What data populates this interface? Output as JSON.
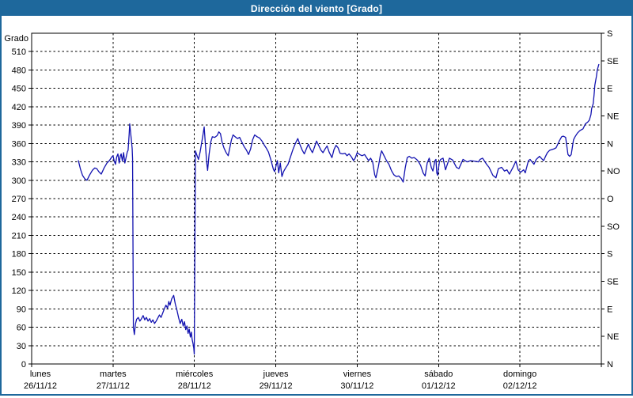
{
  "window": {
    "title": "Dirección del viento [Grado]"
  },
  "colors": {
    "titlebar_bg": "#1e689c",
    "window_border": "#1e689c",
    "title_text": "#ffffff",
    "plot_background": "#ffffff",
    "grid_color": "#000000",
    "axis_text_color": "#000000",
    "line_color": "#1212b0"
  },
  "chart_data": {
    "type": "line",
    "title": "Dirección del viento [Grado]",
    "ylabel": "Grado",
    "grid": "dashed",
    "legend": "none",
    "y_axis": {
      "label": "Grado",
      "min": 0,
      "max": 540,
      "tick_step": 30,
      "tick_labels": [
        0,
        30,
        60,
        90,
        120,
        150,
        180,
        210,
        240,
        270,
        300,
        330,
        360,
        390,
        420,
        450,
        480,
        510
      ]
    },
    "y_axis_right": {
      "unit_step_degrees": 45,
      "labels_bottom_to_top": [
        "N",
        "NE",
        "E",
        "SE",
        "S",
        "SO",
        "O",
        "NO",
        "N",
        "NE",
        "E",
        "SE",
        "S"
      ]
    },
    "x_axis": {
      "range_days": 7,
      "days": [
        {
          "name": "lunes",
          "date": "26/11/12"
        },
        {
          "name": "martes",
          "date": "27/11/12"
        },
        {
          "name": "miércoles",
          "date": "28/11/12"
        },
        {
          "name": "jueves",
          "date": "29/11/12"
        },
        {
          "name": "viernes",
          "date": "30/11/12"
        },
        {
          "name": "sábado",
          "date": "01/12/12"
        },
        {
          "name": "domingo",
          "date": "02/12/12"
        }
      ]
    },
    "series": [
      {
        "name": "Dirección del viento",
        "units": "Grado",
        "x_units": "days since lunes 26/11/12 00:00",
        "color": "#1212b0",
        "points": [
          [
            0.574,
            332
          ],
          [
            0.6,
            318
          ],
          [
            0.625,
            308
          ],
          [
            0.655,
            302
          ],
          [
            0.68,
            300
          ],
          [
            0.71,
            308
          ],
          [
            0.745,
            316
          ],
          [
            0.775,
            320
          ],
          [
            0.8,
            319
          ],
          [
            0.825,
            314
          ],
          [
            0.855,
            310
          ],
          [
            0.89,
            320
          ],
          [
            0.925,
            328
          ],
          [
            0.955,
            332
          ],
          [
            0.985,
            338
          ],
          [
            1.0,
            340
          ],
          [
            1.015,
            331
          ],
          [
            1.03,
            326
          ],
          [
            1.045,
            338
          ],
          [
            1.06,
            343
          ],
          [
            1.075,
            328
          ],
          [
            1.09,
            340
          ],
          [
            1.1,
            343
          ],
          [
            1.115,
            331
          ],
          [
            1.13,
            345
          ],
          [
            1.145,
            328
          ],
          [
            1.16,
            337
          ],
          [
            1.175,
            346
          ],
          [
            1.185,
            349
          ],
          [
            1.198,
            375
          ],
          [
            1.205,
            392
          ],
          [
            1.215,
            379
          ],
          [
            1.225,
            366
          ],
          [
            1.235,
            352
          ],
          [
            1.24,
            335
          ],
          [
            1.25,
            60
          ],
          [
            1.262,
            48
          ],
          [
            1.275,
            65
          ],
          [
            1.29,
            73
          ],
          [
            1.31,
            76
          ],
          [
            1.33,
            70
          ],
          [
            1.35,
            74
          ],
          [
            1.37,
            79
          ],
          [
            1.39,
            72
          ],
          [
            1.41,
            76
          ],
          [
            1.43,
            70
          ],
          [
            1.45,
            74
          ],
          [
            1.47,
            68
          ],
          [
            1.49,
            72
          ],
          [
            1.51,
            66
          ],
          [
            1.53,
            70
          ],
          [
            1.55,
            75
          ],
          [
            1.57,
            80
          ],
          [
            1.59,
            76
          ],
          [
            1.61,
            83
          ],
          [
            1.63,
            90
          ],
          [
            1.65,
            96
          ],
          [
            1.67,
            91
          ],
          [
            1.685,
            102
          ],
          [
            1.7,
            96
          ],
          [
            1.72,
            106
          ],
          [
            1.745,
            112
          ],
          [
            1.765,
            98
          ],
          [
            1.785,
            88
          ],
          [
            1.805,
            76
          ],
          [
            1.825,
            66
          ],
          [
            1.845,
            73
          ],
          [
            1.862,
            62
          ],
          [
            1.878,
            69
          ],
          [
            1.893,
            56
          ],
          [
            1.908,
            62
          ],
          [
            1.922,
            50
          ],
          [
            1.936,
            57
          ],
          [
            1.95,
            44
          ],
          [
            1.962,
            52
          ],
          [
            1.972,
            40
          ],
          [
            1.982,
            34
          ],
          [
            1.992,
            26
          ],
          [
            1.998,
            16
          ],
          [
            2.006,
            200
          ],
          [
            2.012,
            348
          ],
          [
            2.03,
            341
          ],
          [
            2.05,
            334
          ],
          [
            2.07,
            346
          ],
          [
            2.09,
            362
          ],
          [
            2.105,
            374
          ],
          [
            2.12,
            387
          ],
          [
            2.135,
            358
          ],
          [
            2.15,
            330
          ],
          [
            2.162,
            316
          ],
          [
            2.18,
            342
          ],
          [
            2.2,
            362
          ],
          [
            2.22,
            371
          ],
          [
            2.25,
            370
          ],
          [
            2.28,
            373
          ],
          [
            2.3,
            379
          ],
          [
            2.32,
            376
          ],
          [
            2.34,
            362
          ],
          [
            2.365,
            352
          ],
          [
            2.39,
            345
          ],
          [
            2.415,
            340
          ],
          [
            2.435,
            353
          ],
          [
            2.455,
            366
          ],
          [
            2.475,
            374
          ],
          [
            2.5,
            371
          ],
          [
            2.53,
            368
          ],
          [
            2.555,
            370
          ],
          [
            2.58,
            363
          ],
          [
            2.61,
            355
          ],
          [
            2.64,
            349
          ],
          [
            2.665,
            342
          ],
          [
            2.69,
            351
          ],
          [
            2.715,
            366
          ],
          [
            2.74,
            374
          ],
          [
            2.77,
            371
          ],
          [
            2.8,
            369
          ],
          [
            2.83,
            364
          ],
          [
            2.86,
            357
          ],
          [
            2.885,
            352
          ],
          [
            2.91,
            346
          ],
          [
            2.94,
            333
          ],
          [
            2.97,
            318
          ],
          [
            2.985,
            314
          ],
          [
            3.0,
            322
          ],
          [
            3.02,
            332
          ],
          [
            3.035,
            312
          ],
          [
            3.055,
            328
          ],
          [
            3.075,
            306
          ],
          [
            3.095,
            314
          ],
          [
            3.12,
            320
          ],
          [
            3.15,
            326
          ],
          [
            3.18,
            338
          ],
          [
            3.21,
            350
          ],
          [
            3.24,
            360
          ],
          [
            3.27,
            368
          ],
          [
            3.3,
            357
          ],
          [
            3.325,
            349
          ],
          [
            3.35,
            343
          ],
          [
            3.375,
            351
          ],
          [
            3.4,
            359
          ],
          [
            3.425,
            351
          ],
          [
            3.45,
            345
          ],
          [
            3.475,
            354
          ],
          [
            3.5,
            364
          ],
          [
            3.53,
            356
          ],
          [
            3.555,
            349
          ],
          [
            3.58,
            345
          ],
          [
            3.605,
            351
          ],
          [
            3.63,
            356
          ],
          [
            3.655,
            346
          ],
          [
            3.69,
            337
          ],
          [
            3.715,
            350
          ],
          [
            3.74,
            357
          ],
          [
            3.765,
            353
          ],
          [
            3.79,
            344
          ],
          [
            3.82,
            343
          ],
          [
            3.85,
            344
          ],
          [
            3.875,
            340
          ],
          [
            3.9,
            343
          ],
          [
            3.93,
            338
          ],
          [
            3.955,
            332
          ],
          [
            3.975,
            336
          ],
          [
            4.0,
            345
          ],
          [
            4.03,
            342
          ],
          [
            4.06,
            340
          ],
          [
            4.09,
            342
          ],
          [
            4.115,
            337
          ],
          [
            4.14,
            332
          ],
          [
            4.165,
            336
          ],
          [
            4.19,
            330
          ],
          [
            4.215,
            309
          ],
          [
            4.23,
            304
          ],
          [
            4.26,
            322
          ],
          [
            4.285,
            341
          ],
          [
            4.3,
            348
          ],
          [
            4.33,
            340
          ],
          [
            4.36,
            332
          ],
          [
            4.39,
            326
          ],
          [
            4.42,
            316
          ],
          [
            4.45,
            309
          ],
          [
            4.48,
            306
          ],
          [
            4.51,
            307
          ],
          [
            4.54,
            303
          ],
          [
            4.565,
            297
          ],
          [
            4.59,
            320
          ],
          [
            4.615,
            337
          ],
          [
            4.64,
            339
          ],
          [
            4.67,
            336
          ],
          [
            4.7,
            337
          ],
          [
            4.73,
            334
          ],
          [
            4.755,
            330
          ],
          [
            4.78,
            324
          ],
          [
            4.81,
            312
          ],
          [
            4.835,
            307
          ],
          [
            4.86,
            328
          ],
          [
            4.885,
            336
          ],
          [
            4.91,
            321
          ],
          [
            4.93,
            315
          ],
          [
            4.955,
            332
          ],
          [
            4.968,
            334
          ],
          [
            4.978,
            312
          ],
          [
            4.988,
            308
          ],
          [
            5.01,
            330
          ],
          [
            5.026,
            334
          ],
          [
            5.055,
            336
          ],
          [
            5.085,
            317
          ],
          [
            5.133,
            336
          ],
          [
            5.172,
            333
          ],
          [
            5.22,
            321
          ],
          [
            5.25,
            319
          ],
          [
            5.3,
            334
          ],
          [
            5.35,
            330
          ],
          [
            5.395,
            332
          ],
          [
            5.445,
            331
          ],
          [
            5.49,
            330
          ],
          [
            5.51,
            334
          ],
          [
            5.54,
            336
          ],
          [
            5.59,
            326
          ],
          [
            5.62,
            321
          ],
          [
            5.667,
            308
          ],
          [
            5.705,
            304
          ],
          [
            5.735,
            319
          ],
          [
            5.775,
            321
          ],
          [
            5.81,
            315
          ],
          [
            5.84,
            317
          ],
          [
            5.87,
            310
          ],
          [
            5.91,
            320
          ],
          [
            5.95,
            331
          ],
          [
            5.978,
            317
          ],
          [
            6.007,
            313
          ],
          [
            6.046,
            317
          ],
          [
            6.065,
            312
          ],
          [
            6.104,
            332
          ],
          [
            6.124,
            334
          ],
          [
            6.172,
            326
          ],
          [
            6.2,
            334
          ],
          [
            6.24,
            339
          ],
          [
            6.29,
            332
          ],
          [
            6.318,
            340
          ],
          [
            6.337,
            345
          ],
          [
            6.366,
            349
          ],
          [
            6.415,
            351
          ],
          [
            6.444,
            353
          ],
          [
            6.483,
            364
          ],
          [
            6.512,
            371
          ],
          [
            6.532,
            372
          ],
          [
            6.561,
            370
          ],
          [
            6.59,
            342
          ],
          [
            6.61,
            339
          ],
          [
            6.63,
            342
          ],
          [
            6.658,
            366
          ],
          [
            6.677,
            371
          ],
          [
            6.706,
            377
          ],
          [
            6.736,
            381
          ],
          [
            6.775,
            384
          ],
          [
            6.804,
            392
          ],
          [
            6.833,
            395
          ],
          [
            6.852,
            398
          ],
          [
            6.872,
            407
          ],
          [
            6.881,
            417
          ],
          [
            6.9,
            425
          ],
          [
            6.911,
            440
          ],
          [
            6.92,
            455
          ],
          [
            6.94,
            470
          ],
          [
            6.95,
            480
          ],
          [
            6.969,
            489
          ]
        ]
      }
    ]
  }
}
